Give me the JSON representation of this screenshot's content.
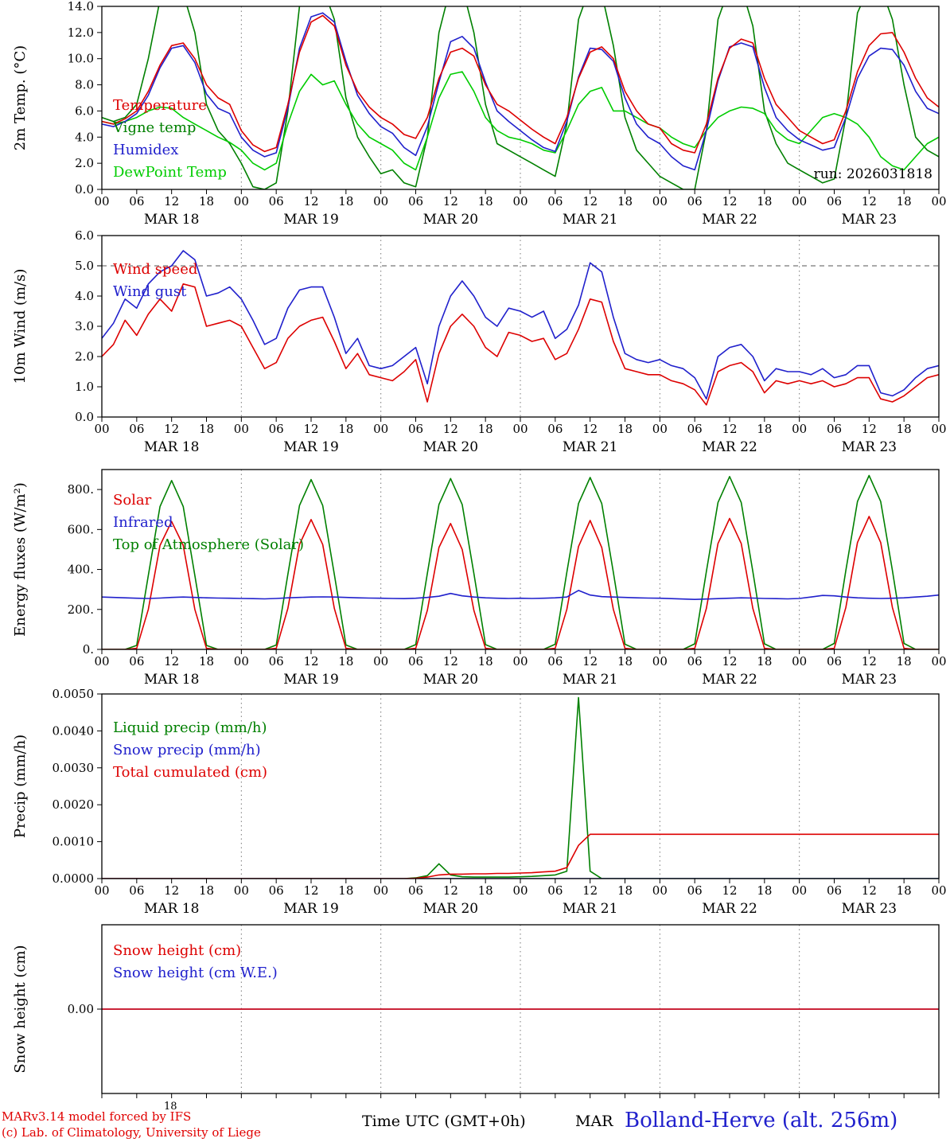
{
  "meta": {
    "run_label": "run: 2026031818",
    "stray_label": "18",
    "footer_left1": "MARv3.14 model forced by IFS",
    "footer_left2": "(c) Lab. of Climatology, University of Liege",
    "footer_center": "Time UTC (GMT+0h)",
    "footer_model": "MAR",
    "footer_station": "Bolland-Herve (alt. 256m)"
  },
  "colors": {
    "red": "#dd0000",
    "blue": "#2020cc",
    "green_dark": "#008000",
    "green_light": "#00cc00",
    "grid": "#777777",
    "axis": "#000000"
  },
  "time_axis": {
    "hours_total": 144,
    "step_hours": 2,
    "tick_every_hours": 6,
    "tick_labels": [
      "00",
      "06",
      "12",
      "18"
    ],
    "day_labels": [
      "MAR 18",
      "MAR 19",
      "MAR 20",
      "MAR 21",
      "MAR 22",
      "MAR 23"
    ]
  },
  "chart_data": [
    {
      "type": "line",
      "ylabel": "2m Temp. (°C)",
      "ylim": [
        0,
        14
      ],
      "yticks": [
        0,
        2,
        4,
        6,
        8,
        10,
        12,
        14
      ],
      "ytick_labels": [
        "0.0",
        "2.0",
        "4.0",
        "6.0",
        "8.0",
        "10.0",
        "12.0",
        "14.0"
      ],
      "show_xlabels": true,
      "annotation": "run: 2026031818",
      "legend": [
        {
          "label": "Temperature",
          "color": "#dd0000"
        },
        {
          "label": "Vigne temp",
          "color": "#008000"
        },
        {
          "label": "Humidex",
          "color": "#2020cc"
        },
        {
          "label": "DewPoint Temp",
          "color": "#00cc00"
        }
      ],
      "series": [
        {
          "name": "Vigne temp",
          "color": "#008000",
          "values": [
            5.5,
            5.2,
            5.5,
            6.5,
            10.0,
            14.5,
            15.5,
            15.0,
            12.0,
            6.5,
            4.5,
            3.5,
            2.0,
            0.2,
            0.0,
            0.5,
            6.0,
            14.0,
            15.5,
            15.5,
            13.0,
            7.0,
            4.0,
            2.5,
            1.2,
            1.5,
            0.5,
            0.2,
            4.0,
            12.0,
            15.5,
            15.5,
            12.0,
            6.5,
            3.5,
            3.0,
            2.5,
            2.0,
            1.5,
            1.0,
            5.0,
            13.0,
            15.5,
            15.0,
            11.0,
            5.5,
            3.0,
            2.0,
            1.0,
            0.5,
            0.0,
            0.0,
            4.5,
            13.0,
            15.5,
            15.5,
            12.5,
            6.0,
            3.5,
            2.0,
            1.5,
            1.0,
            0.5,
            0.8,
            5.5,
            13.5,
            15.5,
            15.5,
            13.0,
            8.0,
            4.0,
            3.0,
            2.5
          ]
        },
        {
          "name": "DewPoint Temp",
          "color": "#00cc00",
          "values": [
            5.2,
            5.0,
            5.2,
            5.5,
            6.0,
            6.3,
            6.2,
            5.5,
            5.0,
            4.5,
            4.0,
            3.6,
            3.0,
            2.0,
            1.5,
            2.0,
            5.0,
            7.5,
            8.8,
            8.0,
            8.3,
            6.5,
            5.0,
            4.0,
            3.5,
            3.0,
            2.0,
            1.5,
            4.0,
            7.0,
            8.8,
            9.0,
            7.5,
            5.5,
            4.5,
            4.0,
            3.8,
            3.5,
            3.0,
            2.8,
            4.5,
            6.5,
            7.5,
            7.8,
            6.0,
            6.0,
            5.5,
            5.0,
            4.7,
            4.0,
            3.5,
            3.2,
            4.5,
            5.5,
            6.0,
            6.3,
            6.2,
            5.8,
            4.5,
            3.8,
            3.5,
            4.5,
            5.5,
            5.8,
            5.5,
            5.0,
            4.0,
            2.5,
            1.8,
            1.5,
            2.5,
            3.5,
            4.0
          ]
        },
        {
          "name": "Humidex",
          "color": "#2020cc",
          "values": [
            5.0,
            4.8,
            5.2,
            5.8,
            7.2,
            9.3,
            10.8,
            11.0,
            9.7,
            7.3,
            6.2,
            5.8,
            4.0,
            3.0,
            2.5,
            2.8,
            6.2,
            10.8,
            13.2,
            13.5,
            12.8,
            9.8,
            7.2,
            5.8,
            4.8,
            4.3,
            3.2,
            2.6,
            4.8,
            8.2,
            11.3,
            11.7,
            10.8,
            8.2,
            6.0,
            5.2,
            4.5,
            3.8,
            3.2,
            2.9,
            5.2,
            8.6,
            10.8,
            10.7,
            9.8,
            7.0,
            5.0,
            4.0,
            3.5,
            2.5,
            1.8,
            1.5,
            4.5,
            8.3,
            10.9,
            11.2,
            10.9,
            7.8,
            5.5,
            4.5,
            3.8,
            3.4,
            3.0,
            3.2,
            5.5,
            8.5,
            10.2,
            10.8,
            10.7,
            9.5,
            7.5,
            6.2,
            5.8
          ]
        },
        {
          "name": "Temperature",
          "color": "#dd0000",
          "values": [
            5.2,
            5.0,
            5.4,
            6.0,
            7.5,
            9.5,
            11.0,
            11.2,
            10.0,
            8.0,
            7.0,
            6.5,
            4.5,
            3.4,
            2.9,
            3.2,
            6.5,
            10.5,
            12.8,
            13.3,
            12.5,
            9.5,
            7.5,
            6.3,
            5.5,
            5.0,
            4.2,
            3.9,
            5.5,
            8.5,
            10.5,
            10.8,
            10.2,
            8.0,
            6.5,
            6.0,
            5.3,
            4.6,
            4.0,
            3.5,
            5.5,
            8.5,
            10.5,
            10.9,
            10.0,
            7.5,
            6.0,
            5.0,
            4.7,
            3.5,
            3.0,
            2.8,
            5.0,
            8.5,
            10.8,
            11.5,
            11.2,
            8.5,
            6.5,
            5.5,
            4.5,
            4.0,
            3.5,
            3.8,
            6.0,
            9.0,
            11.0,
            11.9,
            12.0,
            10.5,
            8.5,
            7.0,
            6.3
          ]
        }
      ]
    },
    {
      "type": "line",
      "ylabel": "10m Wind (m/s)",
      "ylim": [
        0,
        6
      ],
      "yticks": [
        0,
        1,
        2,
        3,
        4,
        5,
        6
      ],
      "ytick_labels": [
        "0.0",
        "1.0",
        "2.0",
        "3.0",
        "4.0",
        "5.0",
        "6.0"
      ],
      "hline": 5.0,
      "show_xlabels": true,
      "legend": [
        {
          "label": "Wind speed",
          "color": "#dd0000"
        },
        {
          "label": "Wind gust",
          "color": "#2020cc"
        }
      ],
      "series": [
        {
          "name": "Wind gust",
          "color": "#2020cc",
          "values": [
            2.6,
            3.1,
            3.9,
            3.6,
            4.4,
            4.8,
            5.0,
            5.5,
            5.2,
            4.0,
            4.1,
            4.3,
            3.9,
            3.2,
            2.4,
            2.6,
            3.6,
            4.2,
            4.3,
            4.3,
            3.3,
            2.1,
            2.6,
            1.7,
            1.6,
            1.7,
            2.0,
            2.3,
            1.1,
            3.0,
            4.0,
            4.5,
            4.0,
            3.3,
            3.0,
            3.6,
            3.5,
            3.3,
            3.5,
            2.6,
            2.9,
            3.7,
            5.1,
            4.8,
            3.3,
            2.1,
            1.9,
            1.8,
            1.9,
            1.7,
            1.6,
            1.3,
            0.6,
            2.0,
            2.3,
            2.4,
            2.0,
            1.2,
            1.6,
            1.5,
            1.5,
            1.4,
            1.6,
            1.3,
            1.4,
            1.7,
            1.7,
            0.8,
            0.7,
            0.9,
            1.3,
            1.6,
            1.7
          ]
        },
        {
          "name": "Wind speed",
          "color": "#dd0000",
          "values": [
            2.0,
            2.4,
            3.2,
            2.7,
            3.4,
            3.9,
            3.5,
            4.4,
            4.3,
            3.0,
            3.1,
            3.2,
            3.0,
            2.3,
            1.6,
            1.8,
            2.6,
            3.0,
            3.2,
            3.3,
            2.5,
            1.6,
            2.1,
            1.4,
            1.3,
            1.2,
            1.5,
            1.9,
            0.5,
            2.1,
            3.0,
            3.4,
            3.0,
            2.3,
            2.0,
            2.8,
            2.7,
            2.5,
            2.6,
            1.9,
            2.1,
            2.9,
            3.9,
            3.8,
            2.5,
            1.6,
            1.5,
            1.4,
            1.4,
            1.2,
            1.1,
            0.9,
            0.4,
            1.5,
            1.7,
            1.8,
            1.5,
            0.8,
            1.2,
            1.1,
            1.2,
            1.1,
            1.2,
            1.0,
            1.1,
            1.3,
            1.3,
            0.6,
            0.5,
            0.7,
            1.0,
            1.3,
            1.4
          ]
        }
      ]
    },
    {
      "type": "line",
      "ylabel": "Energy fluxes (W/m²)",
      "ylim": [
        0,
        900
      ],
      "yticks": [
        0,
        200,
        400,
        600,
        800
      ],
      "ytick_labels": [
        "0.",
        "200.",
        "400.",
        "600.",
        "800."
      ],
      "show_xlabels": true,
      "legend": [
        {
          "label": "Solar",
          "color": "#dd0000"
        },
        {
          "label": "Infrared",
          "color": "#2020cc"
        },
        {
          "label": "Top of Atmosphere (Solar)",
          "color": "#008000"
        }
      ],
      "series": [
        {
          "name": "Top of Atmosphere (Solar)",
          "color": "#008000",
          "values": [
            0,
            0,
            0,
            20,
            370,
            715,
            845,
            715,
            370,
            20,
            0,
            0,
            0,
            0,
            0,
            22,
            375,
            720,
            850,
            720,
            375,
            22,
            0,
            0,
            0,
            0,
            0,
            24,
            380,
            725,
            855,
            725,
            380,
            24,
            0,
            0,
            0,
            0,
            0,
            26,
            385,
            730,
            860,
            730,
            385,
            26,
            0,
            0,
            0,
            0,
            0,
            28,
            390,
            735,
            865,
            735,
            390,
            28,
            0,
            0,
            0,
            0,
            0,
            30,
            395,
            740,
            870,
            740,
            395,
            30,
            0,
            0,
            0
          ]
        },
        {
          "name": "Solar",
          "color": "#dd0000",
          "values": [
            0,
            0,
            0,
            5,
            200,
            520,
            640,
            520,
            200,
            5,
            0,
            0,
            0,
            0,
            0,
            5,
            205,
            525,
            650,
            525,
            205,
            5,
            0,
            0,
            0,
            0,
            0,
            5,
            195,
            510,
            630,
            500,
            195,
            5,
            0,
            0,
            0,
            0,
            0,
            5,
            200,
            515,
            645,
            510,
            200,
            5,
            0,
            0,
            0,
            0,
            0,
            5,
            205,
            530,
            655,
            530,
            205,
            5,
            0,
            0,
            0,
            0,
            0,
            5,
            210,
            535,
            665,
            535,
            210,
            5,
            0,
            0,
            0
          ]
        },
        {
          "name": "Infrared",
          "color": "#2020cc",
          "values": [
            262,
            260,
            258,
            256,
            255,
            257,
            260,
            262,
            260,
            258,
            257,
            256,
            255,
            254,
            253,
            255,
            258,
            260,
            262,
            263,
            262,
            260,
            258,
            257,
            256,
            255,
            254,
            256,
            260,
            266,
            280,
            268,
            262,
            258,
            256,
            255,
            256,
            255,
            256,
            258,
            262,
            295,
            272,
            264,
            262,
            260,
            258,
            257,
            256,
            254,
            252,
            250,
            252,
            254,
            256,
            258,
            257,
            255,
            254,
            253,
            255,
            262,
            270,
            268,
            262,
            258,
            256,
            255,
            256,
            258,
            262,
            266,
            272
          ]
        }
      ]
    },
    {
      "type": "line",
      "ylabel": "Precip (mm/h)",
      "ylim": [
        0,
        0.005
      ],
      "yticks": [
        0,
        0.001,
        0.002,
        0.003,
        0.004,
        0.005
      ],
      "ytick_labels": [
        "0.0000",
        "0.0010",
        "0.0020",
        "0.0030",
        "0.0040",
        "0.0050"
      ],
      "show_xlabels": true,
      "legend": [
        {
          "label": "Liquid precip (mm/h)",
          "color": "#008000"
        },
        {
          "label": "Snow precip (mm/h)",
          "color": "#2020cc"
        },
        {
          "label": "Total cumulated (cm)",
          "color": "#dd0000"
        }
      ],
      "series": [
        {
          "name": "Liquid precip",
          "color": "#008000",
          "values": [
            0,
            0,
            0,
            0,
            0,
            0,
            0,
            0,
            0,
            0,
            0,
            0,
            0,
            0,
            0,
            0,
            0,
            0,
            0,
            0,
            0,
            0,
            0,
            0,
            0,
            0,
            0,
            2e-05,
            8e-05,
            0.0004,
            0.0001,
            5e-05,
            4e-05,
            4e-05,
            4e-05,
            4e-05,
            5e-05,
            6e-05,
            8e-05,
            0.0001,
            0.0002,
            0.0049,
            0.0002,
            0,
            0,
            0,
            0,
            0,
            0,
            0,
            0,
            0,
            0,
            0,
            0,
            0,
            0,
            0,
            0,
            0,
            0,
            0,
            0,
            0,
            0,
            0,
            0,
            0,
            0,
            0,
            0,
            0,
            0
          ]
        },
        {
          "name": "Snow precip",
          "color": "#2020cc",
          "flat": 0
        },
        {
          "name": "Total cumulated",
          "color": "#dd0000",
          "values": [
            0,
            0,
            0,
            0,
            0,
            0,
            0,
            0,
            0,
            0,
            0,
            0,
            0,
            0,
            0,
            0,
            0,
            0,
            0,
            0,
            0,
            0,
            0,
            0,
            0,
            0,
            0,
            1e-05,
            4e-05,
            0.0001,
            0.00012,
            0.00012,
            0.00013,
            0.00013,
            0.00014,
            0.00014,
            0.00015,
            0.00016,
            0.00018,
            0.0002,
            0.0003,
            0.0009,
            0.0012,
            0.0012,
            0.0012,
            0.0012,
            0.0012,
            0.0012,
            0.0012,
            0.0012,
            0.0012,
            0.0012,
            0.0012,
            0.0012,
            0.0012,
            0.0012,
            0.0012,
            0.0012,
            0.0012,
            0.0012,
            0.0012,
            0.0012,
            0.0012,
            0.0012,
            0.0012,
            0.0012,
            0.0012,
            0.0012,
            0.0012,
            0.0012,
            0.0012,
            0.0012,
            0.0012
          ]
        }
      ]
    },
    {
      "type": "line",
      "ylabel": "Snow height (cm)",
      "ylim": [
        -1,
        1
      ],
      "yticks": [
        0
      ],
      "ytick_labels": [
        "0.00"
      ],
      "show_xlabels": false,
      "legend": [
        {
          "label": "Snow height (cm)",
          "color": "#dd0000"
        },
        {
          "label": "Snow height (cm W.E.)",
          "color": "#2020cc"
        }
      ],
      "series": [
        {
          "name": "Snow height W.E.",
          "color": "#2020cc",
          "flat": 0
        },
        {
          "name": "Snow height",
          "color": "#dd0000",
          "flat": 0
        }
      ]
    }
  ]
}
